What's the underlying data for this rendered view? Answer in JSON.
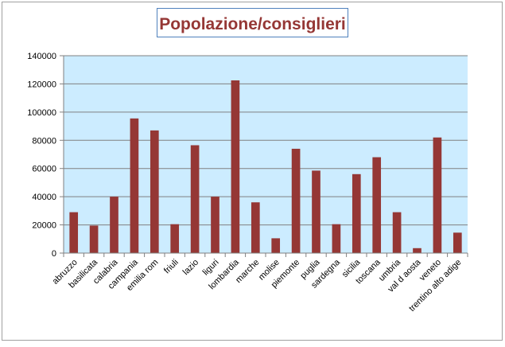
{
  "chart_data": {
    "type": "bar",
    "title": "Popolazione/consiglieri",
    "xlabel": "",
    "ylabel": "",
    "ylim": [
      0,
      140000
    ],
    "yticks": [
      0,
      20000,
      40000,
      60000,
      80000,
      100000,
      120000,
      140000
    ],
    "grid": true,
    "legend": "none",
    "categories": [
      "abruzzo",
      "basilicata",
      "calabria",
      "campania",
      "emilia rom",
      "friuli",
      "lazio",
      "liguri",
      "lombardia",
      "marche",
      "molise",
      "piemonte",
      "puglia",
      "sardegna",
      "sicilia",
      "toscana",
      "umbria",
      "val d aosta",
      "veneto",
      "trentino alto adige"
    ],
    "values": [
      29000,
      19500,
      40000,
      95500,
      87000,
      20500,
      76500,
      40000,
      122500,
      36000,
      10500,
      74000,
      58500,
      20500,
      56000,
      68000,
      29000,
      3500,
      82000,
      14500
    ],
    "colors": {
      "bar": "#953735",
      "plot_background": "#CCECFF",
      "title_text": "#953735",
      "title_border": "#4F81BD",
      "grid": "#808080",
      "outer_border": "#A0A0A0"
    }
  }
}
